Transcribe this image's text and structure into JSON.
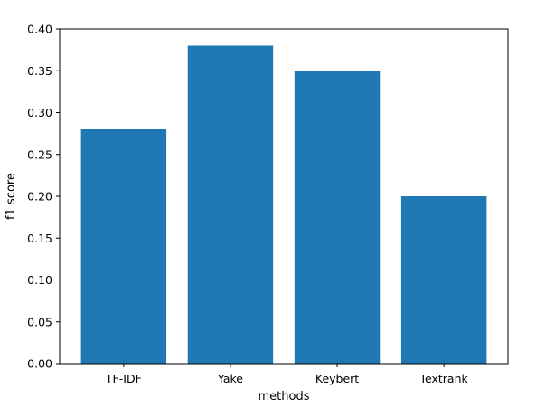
{
  "chart_data": {
    "type": "bar",
    "title": "",
    "xlabel": "methods",
    "ylabel": "f1 score",
    "categories": [
      "TF-IDF",
      "Yake",
      "Keybert",
      "Textrank"
    ],
    "values": [
      0.28,
      0.38,
      0.35,
      0.2
    ],
    "ylim": [
      0,
      0.4
    ],
    "yticks": [
      "0.00",
      "0.05",
      "0.10",
      "0.15",
      "0.20",
      "0.25",
      "0.30",
      "0.35",
      "0.40"
    ],
    "grid": false,
    "legend": "none",
    "bar_color": "#1f77b4"
  }
}
